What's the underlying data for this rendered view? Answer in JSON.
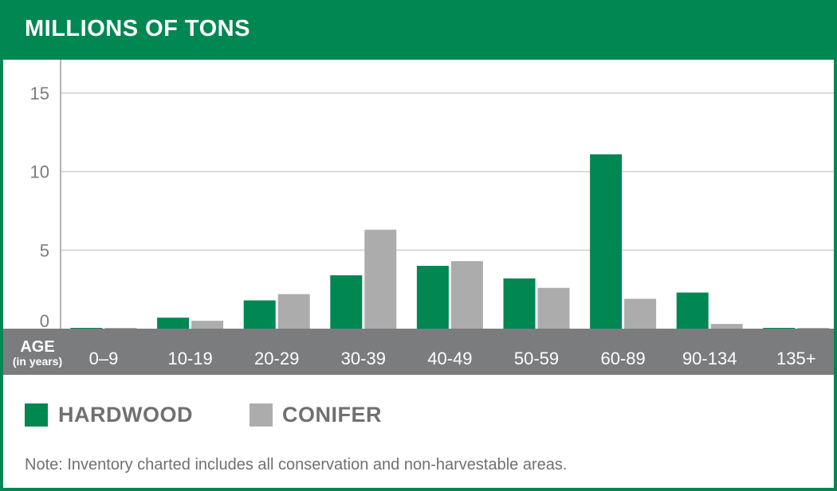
{
  "header": {
    "title": "MILLIONS OF TONS"
  },
  "chart_data": {
    "type": "bar",
    "title": "MILLIONS OF TONS",
    "xlabel": "AGE",
    "xlabel_sub": "(in years)",
    "ylabel": "",
    "ylim": [
      0,
      15
    ],
    "yticks": [
      "0",
      "5",
      "10",
      "15"
    ],
    "categories": [
      "0–9",
      "10-19",
      "20-29",
      "30-39",
      "40-49",
      "50-59",
      "60-89",
      "90-134",
      "135+"
    ],
    "series": [
      {
        "name": "HARDWOOD",
        "color": "#008752",
        "values": [
          0.05,
          0.7,
          1.8,
          3.4,
          4.0,
          3.2,
          11.1,
          2.3,
          0.05
        ]
      },
      {
        "name": "CONIFER",
        "color": "#acacac",
        "values": [
          0.05,
          0.5,
          2.2,
          6.3,
          4.3,
          2.6,
          1.9,
          0.3,
          0.05
        ]
      }
    ],
    "grid": true,
    "legend_position": "bottom-left"
  },
  "legend": {
    "hardwood": "HARDWOOD",
    "conifer": "CONIFER"
  },
  "note": "Note: Inventory charted includes all conservation and non-harvestable areas.",
  "colors": {
    "brand_green": "#008752",
    "conifer_gray": "#acacac",
    "axis_band": "#7b7c7e"
  }
}
